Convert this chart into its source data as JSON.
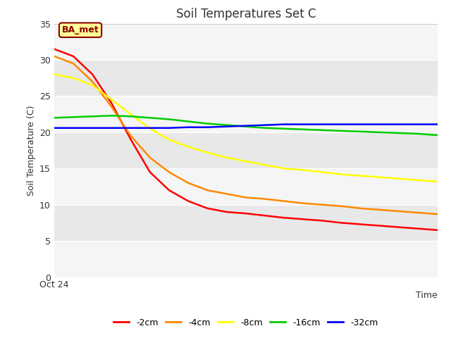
{
  "title": "Soil Temperatures Set C",
  "xlabel": "Time",
  "ylabel": "Soil Temperature (C)",
  "ylim": [
    0,
    35
  ],
  "yticks": [
    0,
    5,
    10,
    15,
    20,
    25,
    30,
    35
  ],
  "xstart_label": "Oct 24",
  "figure_bg_color": "#ffffff",
  "plot_bg_color": "#e8e8e8",
  "band_color_light": "#f5f5f5",
  "band_color_dark": "#e8e8e8",
  "annotation_text": "BA_met",
  "annotation_bg": "#ffff99",
  "annotation_border": "#8B0000",
  "legend_entries": [
    "-2cm",
    "-4cm",
    "-8cm",
    "-16cm",
    "-32cm"
  ],
  "line_colors": [
    "#ff0000",
    "#ff8800",
    "#ffff00",
    "#00cc00",
    "#0000ff"
  ],
  "series": {
    "red": {
      "x": [
        0,
        0.05,
        0.1,
        0.15,
        0.2,
        0.25,
        0.3,
        0.35,
        0.4,
        0.45,
        0.5,
        0.55,
        0.6,
        0.65,
        0.7,
        0.75,
        0.8,
        0.85,
        0.9,
        0.95,
        1.0
      ],
      "y": [
        31.5,
        30.5,
        28.0,
        24.0,
        19.0,
        14.5,
        12.0,
        10.5,
        9.5,
        9.0,
        8.8,
        8.5,
        8.2,
        8.0,
        7.8,
        7.5,
        7.3,
        7.1,
        6.9,
        6.7,
        6.5
      ]
    },
    "orange": {
      "x": [
        0,
        0.05,
        0.1,
        0.15,
        0.2,
        0.25,
        0.3,
        0.35,
        0.4,
        0.45,
        0.5,
        0.55,
        0.6,
        0.65,
        0.7,
        0.75,
        0.8,
        0.85,
        0.9,
        0.95,
        1.0
      ],
      "y": [
        30.5,
        29.5,
        27.0,
        23.5,
        19.5,
        16.5,
        14.5,
        13.0,
        12.0,
        11.5,
        11.0,
        10.8,
        10.5,
        10.2,
        10.0,
        9.8,
        9.5,
        9.3,
        9.1,
        8.9,
        8.7
      ]
    },
    "yellow": {
      "x": [
        0,
        0.05,
        0.1,
        0.15,
        0.2,
        0.25,
        0.3,
        0.35,
        0.4,
        0.45,
        0.5,
        0.55,
        0.6,
        0.65,
        0.7,
        0.75,
        0.8,
        0.85,
        0.9,
        0.95,
        1.0
      ],
      "y": [
        28.0,
        27.5,
        26.5,
        24.5,
        22.5,
        20.5,
        19.0,
        18.0,
        17.2,
        16.5,
        16.0,
        15.5,
        15.0,
        14.8,
        14.5,
        14.2,
        14.0,
        13.8,
        13.6,
        13.4,
        13.2
      ]
    },
    "green": {
      "x": [
        0,
        0.05,
        0.1,
        0.15,
        0.2,
        0.25,
        0.3,
        0.35,
        0.4,
        0.45,
        0.5,
        0.55,
        0.6,
        0.65,
        0.7,
        0.75,
        0.8,
        0.85,
        0.9,
        0.95,
        1.0
      ],
      "y": [
        22.0,
        22.1,
        22.2,
        22.3,
        22.2,
        22.0,
        21.8,
        21.5,
        21.2,
        21.0,
        20.8,
        20.6,
        20.5,
        20.4,
        20.3,
        20.2,
        20.1,
        20.0,
        19.9,
        19.8,
        19.6
      ]
    },
    "blue": {
      "x": [
        0,
        0.05,
        0.1,
        0.15,
        0.2,
        0.25,
        0.3,
        0.35,
        0.4,
        0.45,
        0.5,
        0.55,
        0.6,
        0.65,
        0.7,
        0.75,
        0.8,
        0.85,
        0.9,
        0.95,
        1.0
      ],
      "y": [
        20.6,
        20.6,
        20.6,
        20.6,
        20.6,
        20.6,
        20.6,
        20.7,
        20.7,
        20.8,
        20.9,
        21.0,
        21.1,
        21.1,
        21.1,
        21.1,
        21.1,
        21.1,
        21.1,
        21.1,
        21.1
      ]
    }
  },
  "linewidth": 1.8,
  "figsize": [
    6.4,
    4.8
  ],
  "dpi": 100
}
